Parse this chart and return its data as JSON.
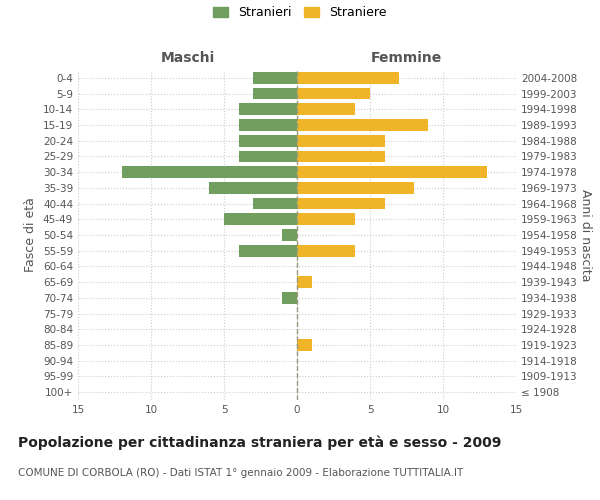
{
  "age_groups": [
    "100+",
    "95-99",
    "90-94",
    "85-89",
    "80-84",
    "75-79",
    "70-74",
    "65-69",
    "60-64",
    "55-59",
    "50-54",
    "45-49",
    "40-44",
    "35-39",
    "30-34",
    "25-29",
    "20-24",
    "15-19",
    "10-14",
    "5-9",
    "0-4"
  ],
  "birth_years": [
    "≤ 1908",
    "1909-1913",
    "1914-1918",
    "1919-1923",
    "1924-1928",
    "1929-1933",
    "1934-1938",
    "1939-1943",
    "1944-1948",
    "1949-1953",
    "1954-1958",
    "1959-1963",
    "1964-1968",
    "1969-1973",
    "1974-1978",
    "1979-1983",
    "1984-1988",
    "1989-1993",
    "1994-1998",
    "1999-2003",
    "2004-2008"
  ],
  "males": [
    0,
    0,
    0,
    0,
    0,
    0,
    1,
    0,
    0,
    4,
    1,
    5,
    3,
    6,
    12,
    4,
    4,
    4,
    4,
    3,
    3
  ],
  "females": [
    0,
    0,
    0,
    1,
    0,
    0,
    0,
    1,
    0,
    4,
    0,
    4,
    6,
    8,
    13,
    6,
    6,
    9,
    4,
    5,
    7
  ],
  "male_color": "#6f9e5e",
  "female_color": "#f0b429",
  "title": "Popolazione per cittadinanza straniera per età e sesso - 2009",
  "subtitle": "COMUNE DI CORBOLA (RO) - Dati ISTAT 1° gennaio 2009 - Elaborazione TUTTITALIA.IT",
  "label_maschi": "Maschi",
  "label_femmine": "Femmine",
  "ylabel_left": "Fasce di età",
  "ylabel_right": "Anni di nascita",
  "legend_male": "Stranieri",
  "legend_female": "Straniere",
  "xlim": 15,
  "background_color": "#ffffff",
  "grid_color": "#cccccc",
  "bar_height": 0.75,
  "center_line_color": "#999977",
  "tick_label_color": "#555555",
  "title_fontsize": 10,
  "subtitle_fontsize": 7.5,
  "axis_label_fontsize": 9,
  "tick_fontsize": 7.5,
  "header_fontsize": 10,
  "legend_fontsize": 9
}
